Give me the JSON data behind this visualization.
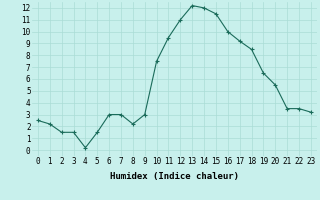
{
  "x": [
    0,
    1,
    2,
    3,
    4,
    5,
    6,
    7,
    8,
    9,
    10,
    11,
    12,
    13,
    14,
    15,
    16,
    17,
    18,
    19,
    20,
    21,
    22,
    23
  ],
  "y": [
    2.5,
    2.2,
    1.5,
    1.5,
    0.2,
    1.5,
    3.0,
    3.0,
    2.2,
    3.0,
    7.5,
    9.5,
    11.0,
    12.2,
    12.0,
    11.5,
    10.0,
    9.2,
    8.5,
    6.5,
    5.5,
    3.5,
    3.5,
    3.2
  ],
  "line_color": "#1a6b5a",
  "marker": "+",
  "marker_size": 3,
  "bg_color": "#c8f0ec",
  "grid_color": "#aaddd6",
  "xlabel": "Humidex (Indice chaleur)",
  "xlim": [
    -0.5,
    23.5
  ],
  "ylim": [
    -0.5,
    12.5
  ],
  "yticks": [
    0,
    1,
    2,
    3,
    4,
    5,
    6,
    7,
    8,
    9,
    10,
    11,
    12
  ],
  "xticks": [
    0,
    1,
    2,
    3,
    4,
    5,
    6,
    7,
    8,
    9,
    10,
    11,
    12,
    13,
    14,
    15,
    16,
    17,
    18,
    19,
    20,
    21,
    22,
    23
  ],
  "label_fontsize": 6.5,
  "tick_fontsize": 5.5
}
